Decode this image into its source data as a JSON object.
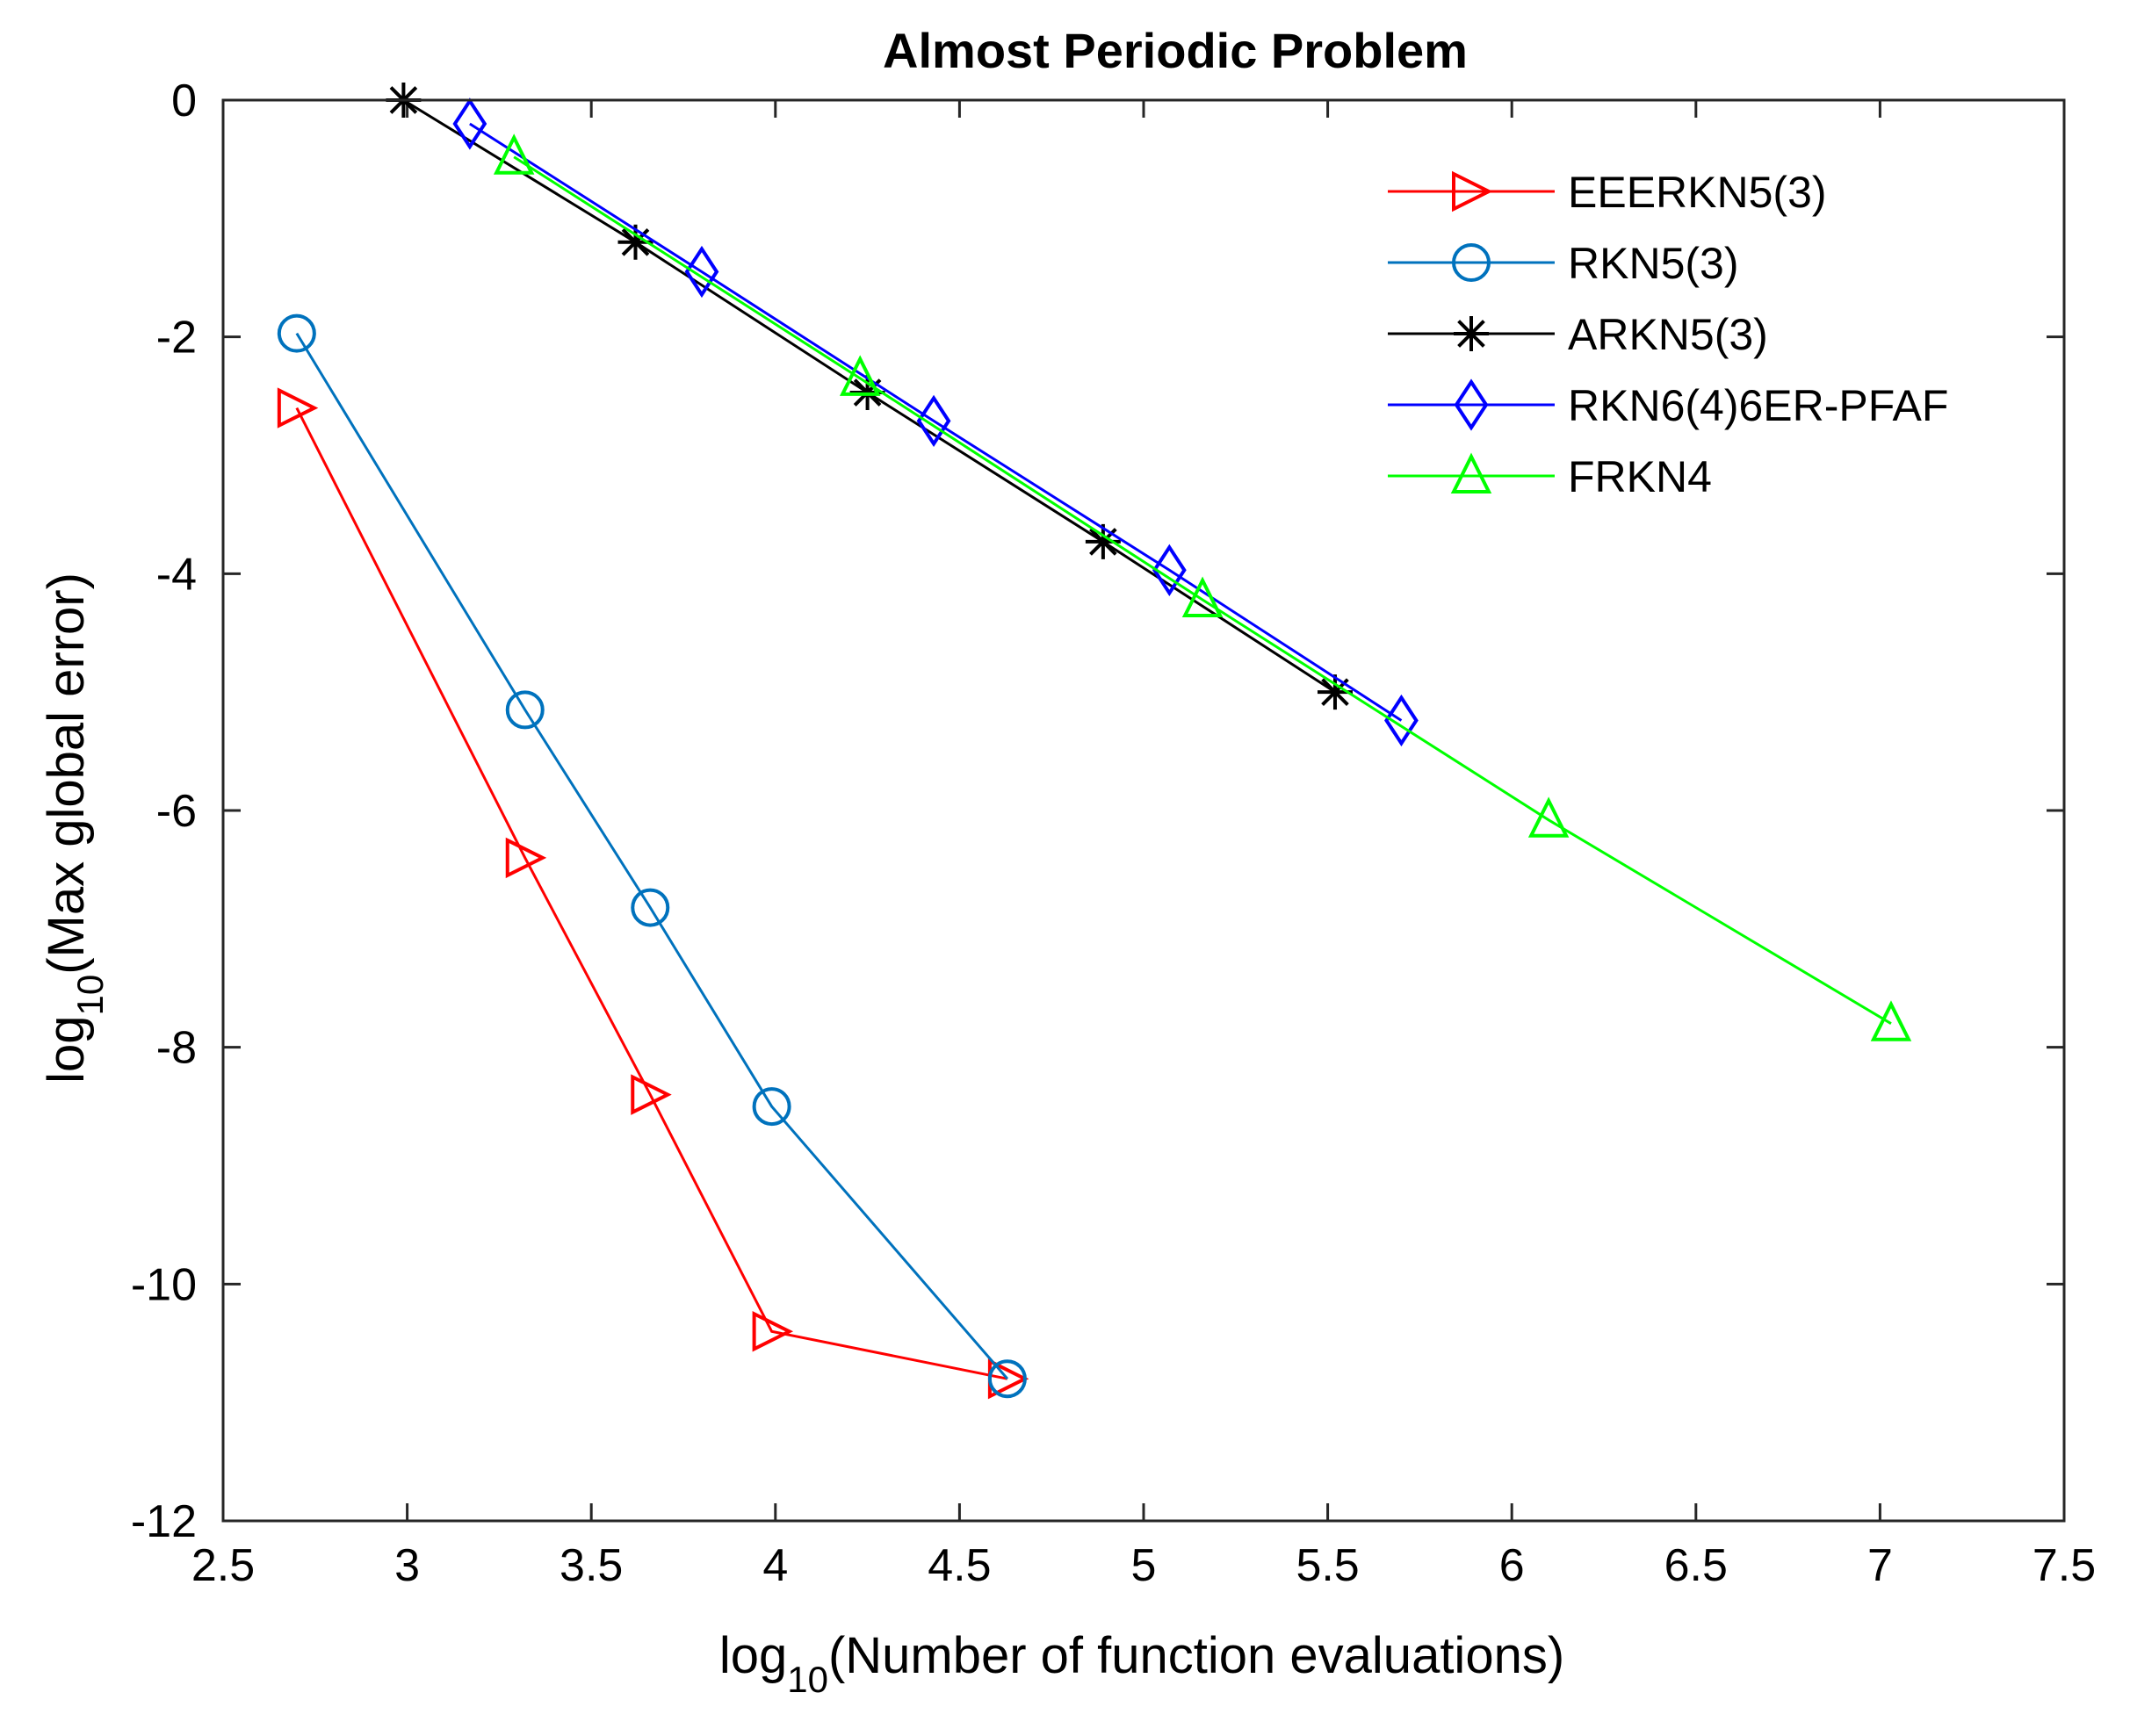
{
  "chart_data": {
    "type": "line",
    "title": "Almost Periodic Problem",
    "xlabel": {
      "prefix": "log",
      "sub": "10",
      "suffix": "(Number of function evaluations)"
    },
    "ylabel": {
      "prefix": "log",
      "sub": "10",
      "suffix": "(Max global error)"
    },
    "xlim": [
      2.5,
      7.5
    ],
    "ylim": [
      -12,
      0
    ],
    "xticks": [
      2.5,
      3,
      3.5,
      4,
      4.5,
      5,
      5.5,
      6,
      6.5,
      7,
      7.5
    ],
    "xtick_labels": [
      "2.5",
      "3",
      "3.5",
      "4",
      "4.5",
      "5",
      "5.5",
      "6",
      "6.5",
      "7",
      "7.5"
    ],
    "yticks": [
      0,
      -2,
      -4,
      -6,
      -8,
      -10,
      -12
    ],
    "ytick_labels": [
      "0",
      "-2",
      "-4",
      "-6",
      "-8",
      "-10",
      "-12"
    ],
    "grid": false,
    "legend_position": "top-right",
    "series": [
      {
        "name": "EEERKN5(3)",
        "color": "#ff0000",
        "marker": "triangle-right",
        "x": [
          2.7,
          3.32,
          3.66,
          3.99,
          4.63
        ],
        "y": [
          -2.6,
          -6.4,
          -8.4,
          -10.4,
          -10.8
        ]
      },
      {
        "name": "RKN5(3)",
        "color": "#0072bd",
        "marker": "circle",
        "x": [
          2.7,
          3.32,
          3.66,
          3.99,
          4.63
        ],
        "y": [
          -1.97,
          -5.15,
          -6.82,
          -8.5,
          -10.8
        ]
      },
      {
        "name": "ARKN5(3)",
        "color": "#000000",
        "marker": "asterisk",
        "x": [
          2.99,
          3.62,
          4.25,
          4.89,
          5.52
        ],
        "y": [
          0.0,
          -1.2,
          -2.47,
          -3.73,
          -5.0
        ]
      },
      {
        "name": "RKN6(4)6ER-PFAF",
        "color": "#0000ff",
        "marker": "diamond",
        "x": [
          3.17,
          3.8,
          4.43,
          5.07,
          5.7
        ],
        "y": [
          -0.2,
          -1.45,
          -2.71,
          -3.97,
          -5.24
        ]
      },
      {
        "name": "FRKN4",
        "color": "#00ff00",
        "marker": "triangle-up",
        "x": [
          3.29,
          4.23,
          5.16,
          6.1,
          7.03
        ],
        "y": [
          -0.48,
          -2.35,
          -4.22,
          -6.08,
          -7.8
        ]
      }
    ]
  }
}
